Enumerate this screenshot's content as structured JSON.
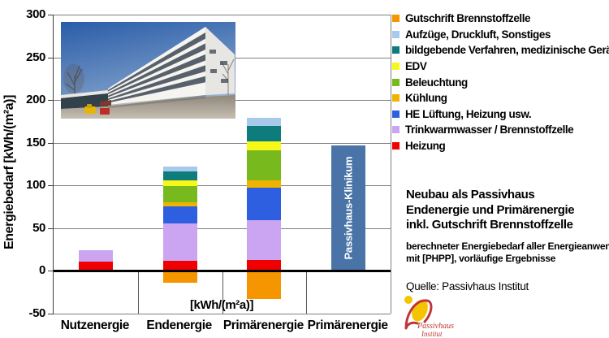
{
  "chart": {
    "y_axis_title": "Energiebedarf [kWh/(m²a)]",
    "x_unit_label": "[kWh/(m²a)]"
  },
  "chart_data": {
    "type": "bar",
    "stacked": true,
    "categories": [
      "Nutzenergie",
      "Endenergie",
      "Primärenergie",
      "Primärenergie"
    ],
    "ylim": [
      -50,
      300
    ],
    "y_ticks": [
      300,
      250,
      200,
      150,
      100,
      50,
      0,
      -50
    ],
    "grid": "horizontal",
    "legend_position": "right",
    "series": [
      {
        "name": "Heizung",
        "color": "#f00000",
        "values": [
          11,
          12,
          13,
          0
        ]
      },
      {
        "name": "Trinkwarmwasser / Brennstoffzelle",
        "color": "#cba5f2",
        "values": [
          13,
          44,
          46,
          0
        ]
      },
      {
        "name": "HE Lüftung, Heizung usw.",
        "color": "#2e5fe0",
        "values": [
          0,
          20,
          38,
          0
        ]
      },
      {
        "name": "Kühlung",
        "color": "#f0b400",
        "values": [
          0,
          4,
          9,
          0
        ]
      },
      {
        "name": "Beleuchtung",
        "color": "#78ba1e",
        "values": [
          0,
          19,
          35,
          0
        ]
      },
      {
        "name": "EDV",
        "color": "#f7f719",
        "values": [
          0,
          7,
          11,
          0
        ]
      },
      {
        "name": "bildgebende Verfahren, medizinische Geräte",
        "color": "#0e7c7c",
        "values": [
          0,
          10,
          18,
          0
        ]
      },
      {
        "name": "Aufzüge, Druckluft, Sonstiges",
        "color": "#a6c9ec",
        "values": [
          0,
          6,
          9,
          0
        ]
      },
      {
        "name": "Gutschrift Brennstoffzelle",
        "color": "#f59600",
        "values": [
          0,
          -14,
          -33,
          0
        ]
      },
      {
        "name": "Passivhaus-Klinikum",
        "color": "#4a74a8",
        "values": [
          0,
          0,
          0,
          147
        ],
        "bar_label": "Passivhaus-Klinikum",
        "in_legend": false
      }
    ]
  },
  "legend": {
    "items": [
      {
        "label": "Gutschrift Brennstoffzelle",
        "color": "#f59600"
      },
      {
        "label": "Aufzüge, Druckluft, Sonstiges",
        "color": "#a6c9ec"
      },
      {
        "label": "bildgebende Verfahren, medizinische Geräte",
        "color": "#0e7c7c"
      },
      {
        "label": "EDV",
        "color": "#f7f719"
      },
      {
        "label": "Beleuchtung",
        "color": "#78ba1e"
      },
      {
        "label": "Kühlung",
        "color": "#f0b400"
      },
      {
        "label": "HE Lüftung, Heizung usw.",
        "color": "#2e5fe0"
      },
      {
        "label": "Trinkwarmwasser / Brennstoffzelle",
        "color": "#cba5f2"
      },
      {
        "label": "Heizung",
        "color": "#f00000"
      }
    ]
  },
  "annotation": {
    "heading_lines": [
      "Neubau als Passivhaus",
      "Endenergie und Primärenergie",
      "inkl. Gutschrift Brennstoffzelle"
    ],
    "note_lines": [
      "berechneter Energiebedarf aller Energieanwendungen",
      "mit [PHPP], vorläufige Ergebnisse"
    ]
  },
  "source": {
    "text": "Quelle: Passivhaus Institut"
  },
  "logo": {
    "line1": "Passivhaus",
    "line2": "Institut",
    "accent_red": "#c03535",
    "accent_yellow": "#f5c400"
  }
}
